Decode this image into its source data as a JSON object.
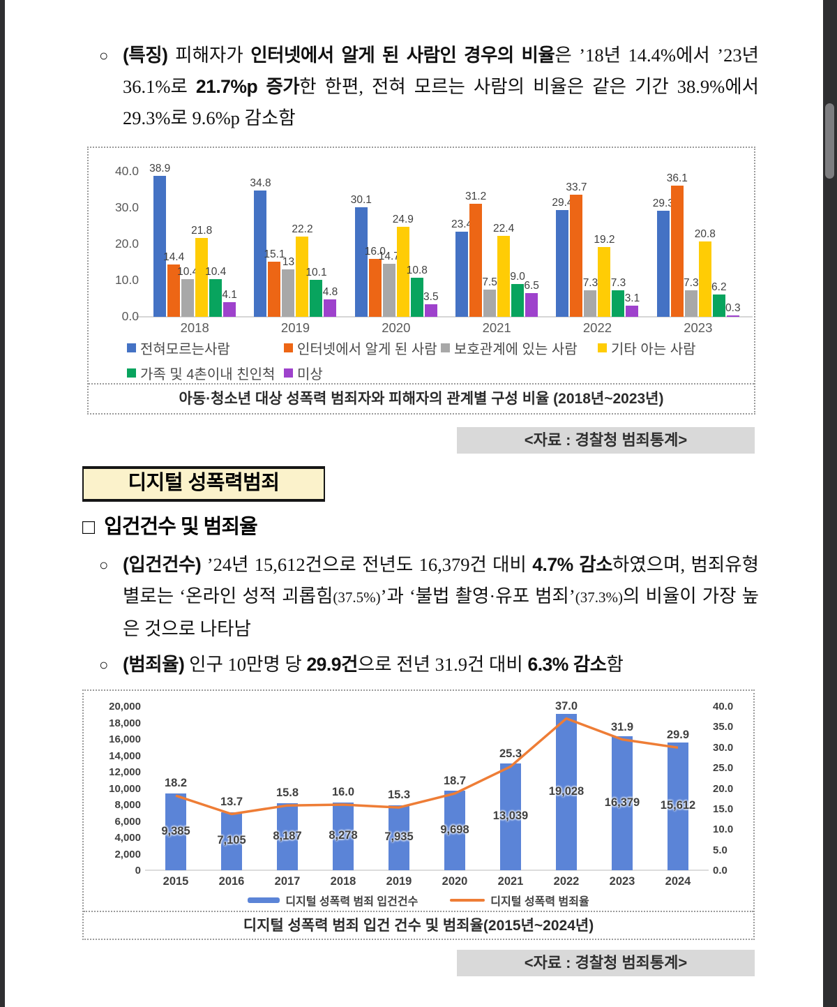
{
  "texts": {
    "para_feature": {
      "bullet": "○",
      "segments": [
        {
          "t": "(특징) ",
          "b": true
        },
        {
          "t": "피해자가 ",
          "b": false
        },
        {
          "t": "인터넷에서 알게 된 사람인 경우의 비율",
          "b": true
        },
        {
          "t": "은 ’18년 14.4%에서 ’23년 36.1%로 ",
          "b": false
        },
        {
          "t": "21.7%p 증가",
          "b": true
        },
        {
          "t": "한 한편, 전혀 모르는 사람의 비율은 같은 기간 38.9%에서 29.3%로 9.6%p 감소함",
          "b": false
        }
      ]
    },
    "heading_digital": "디지털 성폭력범죄",
    "subheading_marker": "□",
    "subheading_text": "입건건수 및 범죄율",
    "para_ipgeon": {
      "bullet": "○",
      "segments": [
        {
          "t": "(입건건수) ",
          "b": true
        },
        {
          "t": "’24년 15,612건으로 전년도 16,379건 대비 ",
          "b": false
        },
        {
          "t": "4.7% 감소",
          "b": true
        },
        {
          "t": "하였으며, 범죄유형별로는 ‘온라인 성적 괴롭힘",
          "b": false
        },
        {
          "t": "(37.5%)",
          "b": false,
          "small": true
        },
        {
          "t": "’과 ‘불법 촬영·유포 범죄’",
          "b": false
        },
        {
          "t": "(37.3%)",
          "b": false,
          "small": true
        },
        {
          "t": "의 비율이 가장 높은 것으로 나타남",
          "b": false
        }
      ]
    },
    "para_rate": {
      "bullet": "○",
      "segments": [
        {
          "t": "(범죄율) ",
          "b": true
        },
        {
          "t": "인구 10만명 당 ",
          "b": false
        },
        {
          "t": "29.9건",
          "b": true
        },
        {
          "t": "으로 전년 31.9건 대비 ",
          "b": false
        },
        {
          "t": "6.3% 감소",
          "b": true
        },
        {
          "t": "함",
          "b": false
        }
      ]
    },
    "source1": "<자료 : 경찰청 범죄통계>",
    "source2": "<자료 : 경찰청 범죄통계>"
  },
  "chart_data": [
    {
      "type": "bar",
      "title": "아동·청소년 대상 성폭력 범죄자와 피해자의 관계별 구성 비율 (2018년~2023년)",
      "categories": [
        "2018",
        "2019",
        "2020",
        "2021",
        "2022",
        "2023"
      ],
      "yticks": [
        "40.0",
        "30.0",
        "20.0",
        "10.0",
        "0.0"
      ],
      "ylim": [
        0,
        44
      ],
      "grid": false,
      "legend_rows": [
        [
          "전혀모르는사람",
          "인터넷에서 알게 된 사람",
          "보호관계에 있는 사람",
          "기타 아는 사람"
        ],
        [
          "가족 및 4촌이내 친인척",
          "미상"
        ]
      ],
      "series": [
        {
          "name": "전혀모르는사람",
          "color": "#4472c4",
          "values": [
            38.9,
            34.8,
            30.1,
            23.4,
            29.4,
            29.3
          ],
          "labels": [
            "38.9",
            "34.8",
            "30.1",
            "23.4",
            "29.4",
            "29.3"
          ]
        },
        {
          "name": "인터넷에서 알게 된 사람",
          "color": "#ed6615",
          "values": [
            14.4,
            15.1,
            16.0,
            31.2,
            33.7,
            36.1
          ],
          "labels": [
            "14.4",
            "15.1",
            "16.0",
            "31.2",
            "33.7",
            "36.1"
          ]
        },
        {
          "name": "보호관계에 있는 사람",
          "color": "#a8a8a8",
          "values": [
            10.4,
            13,
            14.7,
            7.5,
            7.3,
            7.3
          ],
          "labels": [
            "10.4",
            "13",
            "14.7",
            "7.5",
            "7.3",
            "7.3"
          ]
        },
        {
          "name": "기타 아는 사람",
          "color": "#ffcc05",
          "values": [
            21.8,
            22.2,
            24.9,
            22.4,
            19.2,
            20.8
          ],
          "labels": [
            "21.8",
            "22.2",
            "24.9",
            "22.4",
            "19.2",
            "20.8"
          ]
        },
        {
          "name": "가족 및 4촌이내 친인척",
          "color": "#08a45e",
          "values": [
            10.4,
            10.1,
            10.8,
            9.0,
            7.3,
            6.2
          ],
          "labels": [
            "10.4",
            "10.1",
            "10.8",
            "9.0",
            "7.3",
            "6.2"
          ]
        },
        {
          "name": "미상",
          "color": "#9e42cc",
          "values": [
            4.1,
            4.8,
            3.5,
            6.5,
            3.1,
            0.3
          ],
          "labels": [
            "4.1",
            "4.8",
            "3.5",
            "6.5",
            "3.1",
            "0.3"
          ]
        }
      ]
    },
    {
      "type": "bar+line",
      "title": "디지털 성폭력 범죄 입건 건수 및 범죄율(2015년~2024년)",
      "categories": [
        "2015",
        "2016",
        "2017",
        "2018",
        "2019",
        "2020",
        "2021",
        "2022",
        "2023",
        "2024"
      ],
      "left_ticks": [
        "20,000",
        "18,000",
        "16,000",
        "14,000",
        "12,000",
        "10,000",
        "8,000",
        "6,000",
        "4,000",
        "2,000",
        "0"
      ],
      "right_ticks": [
        "40.0",
        "35.0",
        "30.0",
        "25.0",
        "20.0",
        "15.0",
        "10.0",
        "5.0",
        "0.0"
      ],
      "left_ylim": [
        0,
        20000
      ],
      "right_ylim": [
        0,
        40
      ],
      "bar_color": "#5b84d7",
      "line_color": "#ee7d36",
      "series": [
        {
          "name": "디지털 성폭력 범죄 입건건수",
          "axis": "left",
          "values": [
            9385,
            7105,
            8187,
            8278,
            7935,
            9698,
            13039,
            19028,
            16379,
            15612
          ],
          "labels": [
            "9,385",
            "7,105",
            "8,187",
            "8,278",
            "7,935",
            "9,698",
            "13,039",
            "19,028",
            "16,379",
            "15,612"
          ]
        },
        {
          "name": "디지털 성폭력 범죄율",
          "axis": "right",
          "values": [
            18.2,
            13.7,
            15.8,
            16.0,
            15.3,
            18.7,
            25.3,
            37.0,
            31.9,
            29.9
          ],
          "labels": [
            "18.2",
            "13.7",
            "15.8",
            "16.0",
            "15.3",
            "18.7",
            "25.3",
            "37.0",
            "31.9",
            "29.9"
          ]
        }
      ]
    }
  ]
}
